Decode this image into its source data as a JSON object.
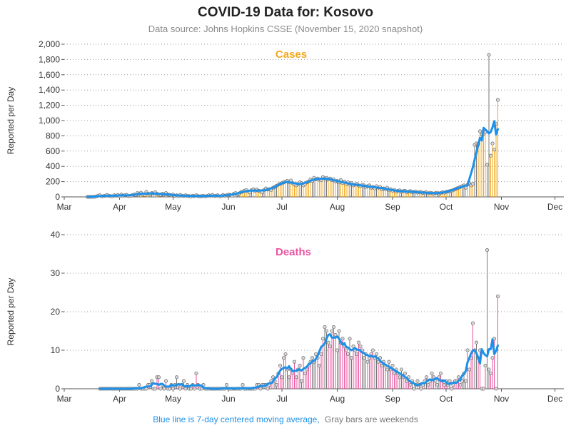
{
  "title": "COVID-19 Data for: Kosovo",
  "subtitle": "Data source: Johns Hopkins CSSE (November 15, 2020 snapshot)",
  "footnote": {
    "part1": "Blue line is 7-day centered moving average,",
    "part2": "Gray bars are weekends",
    "color_avg": "#1E90E8",
    "color_weekend": "#777777"
  },
  "colors": {
    "cases": "#F2A81D",
    "deaths": "#E8559F",
    "weekend": "#777777",
    "average": "#1E90E8",
    "grid": "#999999",
    "axis": "#555555"
  },
  "x_axis": {
    "ticks": [
      "Mar",
      "Apr",
      "May",
      "Jun",
      "Jul",
      "Aug",
      "Sep",
      "Oct",
      "Nov",
      "Dec"
    ]
  },
  "chart_data": [
    {
      "type": "bar",
      "title": "Cases",
      "ylabel": "Reported per Day",
      "ylim": [
        0,
        2000
      ],
      "yticks": [
        0,
        200,
        400,
        600,
        800,
        1000,
        1200,
        1400,
        1600,
        1800,
        2000
      ],
      "ytick_labels": [
        "0",
        "200",
        "400",
        "600",
        "800",
        "1,000",
        "1,200",
        "1,400",
        "1,600",
        "1,800",
        "2,000"
      ],
      "grid": true,
      "moving_average": "7-day centered",
      "first_date": "2020-03-14",
      "values": [
        0,
        0,
        0,
        0,
        0,
        5,
        15,
        20,
        5,
        10,
        15,
        25,
        15,
        10,
        5,
        20,
        15,
        25,
        10,
        30,
        15,
        20,
        25,
        10,
        15,
        20,
        30,
        25,
        50,
        40,
        55,
        30,
        25,
        65,
        40,
        35,
        50,
        45,
        60,
        40,
        30,
        25,
        40,
        35,
        50,
        30,
        25,
        20,
        30,
        15,
        20,
        10,
        25,
        15,
        10,
        20,
        15,
        10,
        5,
        15,
        10,
        20,
        10,
        5,
        10,
        15,
        5,
        10,
        20,
        15,
        25,
        10,
        15,
        20,
        5,
        10,
        25,
        15,
        20,
        30,
        25,
        15,
        40,
        50,
        30,
        45,
        60,
        70,
        80,
        90,
        70,
        60,
        90,
        100,
        80,
        95,
        80,
        70,
        60,
        90,
        110,
        95,
        100,
        90,
        120,
        130,
        145,
        160,
        170,
        180,
        190,
        200,
        210,
        195,
        215,
        180,
        160,
        150,
        170,
        190,
        180,
        150,
        170,
        190,
        200,
        230,
        210,
        250,
        230,
        240,
        230,
        220,
        260,
        240,
        250,
        230,
        240,
        220,
        230,
        200,
        210,
        190,
        220,
        180,
        200,
        170,
        190,
        160,
        180,
        150,
        160,
        170,
        150,
        140,
        160,
        150,
        130,
        140,
        150,
        120,
        130,
        110,
        140,
        120,
        130,
        100,
        110,
        100,
        120,
        90,
        100,
        80,
        90,
        70,
        80,
        85,
        70,
        75,
        80,
        60,
        70,
        75,
        60,
        65,
        70,
        55,
        60,
        65,
        50,
        55,
        60,
        45,
        55,
        50,
        40,
        50,
        55,
        45,
        50,
        60,
        55,
        65,
        70,
        75,
        80,
        90,
        100,
        110,
        120,
        130,
        140,
        150,
        120,
        160,
        180,
        150,
        170,
        680,
        700,
        690,
        860,
        820,
        830,
        850,
        420,
        1860,
        540,
        700,
        620,
        960,
        1270
      ]
    },
    {
      "type": "bar",
      "title": "Deaths",
      "ylabel": "Reported per Day",
      "ylim": [
        0,
        40
      ],
      "yticks": [
        0,
        10,
        20,
        30,
        40
      ],
      "ytick_labels": [
        "0",
        "10",
        "20",
        "30",
        "40"
      ],
      "grid": true,
      "moving_average": "7-day centered",
      "first_date": "2020-03-21",
      "values": [
        0,
        0,
        0,
        0,
        0,
        0,
        0,
        0,
        0,
        0,
        0,
        0,
        0,
        0,
        0,
        0,
        0,
        0,
        0,
        0,
        0,
        0,
        1,
        0,
        0,
        0,
        0,
        1,
        1,
        2,
        0,
        0,
        3,
        3,
        0,
        1,
        0,
        2,
        0,
        0,
        1,
        0,
        1,
        3,
        1,
        0,
        1,
        2,
        0,
        1,
        0,
        0,
        1,
        0,
        4,
        1,
        0,
        0,
        1,
        0,
        0,
        0,
        0,
        0,
        0,
        0,
        0,
        0,
        0,
        0,
        0,
        1,
        0,
        0,
        0,
        0,
        0,
        0,
        0,
        0,
        1,
        0,
        0,
        0,
        0,
        0,
        0,
        0,
        1,
        1,
        0,
        1,
        1,
        1,
        0,
        1,
        2,
        3,
        2,
        1,
        4,
        6,
        3,
        8,
        9,
        5,
        3,
        5,
        4,
        7,
        3,
        5,
        6,
        2,
        8,
        4,
        5,
        6,
        7,
        8,
        7,
        9,
        8,
        6,
        9,
        13,
        16,
        15,
        12,
        11,
        15,
        16,
        14,
        10,
        15,
        12,
        13,
        11,
        10,
        9,
        13,
        8,
        11,
        10,
        9,
        12,
        11,
        10,
        8,
        9,
        7,
        8,
        9,
        10,
        8,
        9,
        7,
        8,
        6,
        7,
        6,
        5,
        7,
        5,
        6,
        4,
        5,
        4,
        3,
        5,
        3,
        4,
        2,
        3,
        1,
        2,
        0,
        1,
        2,
        1,
        0,
        1,
        2,
        3,
        1,
        2,
        4,
        3,
        2,
        1,
        3,
        4,
        2,
        1,
        2,
        1,
        2,
        0,
        1,
        2,
        2,
        3,
        1,
        2,
        4,
        2,
        10,
        5,
        8,
        17,
        10,
        12,
        8,
        10,
        0,
        0,
        6,
        36,
        5,
        4,
        8,
        13,
        0,
        24
      ]
    }
  ]
}
